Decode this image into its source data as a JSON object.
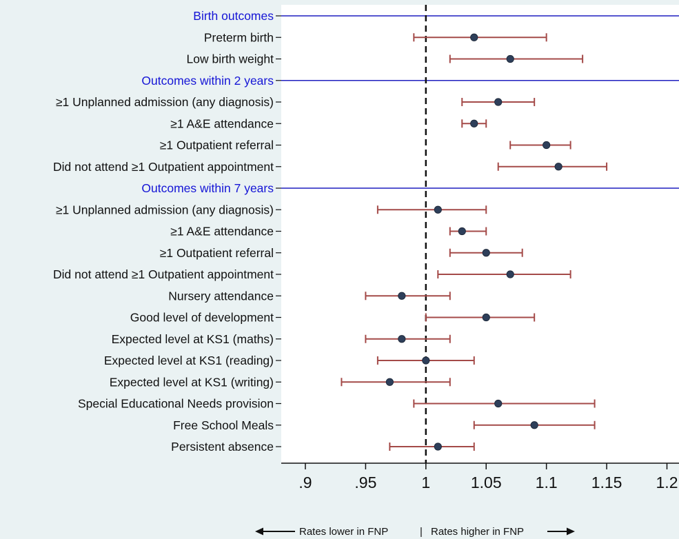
{
  "chart_data": {
    "type": "forest",
    "reference_line": 1,
    "xlim": [
      0.88,
      1.21
    ],
    "xticks": [
      {
        "value": 0.9,
        "label": ".9"
      },
      {
        "value": 0.95,
        "label": ".95"
      },
      {
        "value": 1.0,
        "label": "1"
      },
      {
        "value": 1.05,
        "label": "1.05"
      },
      {
        "value": 1.1,
        "label": "1.1"
      },
      {
        "value": 1.15,
        "label": "1.15"
      },
      {
        "value": 1.2,
        "label": "1.2"
      }
    ],
    "rows": [
      {
        "kind": "group",
        "label": "Birth outcomes"
      },
      {
        "kind": "item",
        "label": "Preterm birth",
        "estimate": 1.04,
        "lower": 0.99,
        "upper": 1.1
      },
      {
        "kind": "item",
        "label": "Low birth weight",
        "estimate": 1.07,
        "lower": 1.02,
        "upper": 1.13
      },
      {
        "kind": "group",
        "label": "Outcomes within 2 years"
      },
      {
        "kind": "item",
        "label": "≥1 Unplanned admission (any diagnosis)",
        "estimate": 1.06,
        "lower": 1.03,
        "upper": 1.09
      },
      {
        "kind": "item",
        "label": "≥1 A&E attendance",
        "estimate": 1.04,
        "lower": 1.03,
        "upper": 1.05
      },
      {
        "kind": "item",
        "label": "≥1 Outpatient referral",
        "estimate": 1.1,
        "lower": 1.07,
        "upper": 1.12
      },
      {
        "kind": "item",
        "label": "Did not attend ≥1 Outpatient appointment",
        "estimate": 1.11,
        "lower": 1.06,
        "upper": 1.15
      },
      {
        "kind": "group",
        "label": "Outcomes within 7 years"
      },
      {
        "kind": "item",
        "label": "≥1 Unplanned admission (any diagnosis)",
        "estimate": 1.01,
        "lower": 0.96,
        "upper": 1.05
      },
      {
        "kind": "item",
        "label": "≥1 A&E attendance",
        "estimate": 1.03,
        "lower": 1.02,
        "upper": 1.05
      },
      {
        "kind": "item",
        "label": "≥1 Outpatient referral",
        "estimate": 1.05,
        "lower": 1.02,
        "upper": 1.08
      },
      {
        "kind": "item",
        "label": "Did not attend ≥1 Outpatient appointment",
        "estimate": 1.07,
        "lower": 1.01,
        "upper": 1.12
      },
      {
        "kind": "item",
        "label": "Nursery attendance",
        "estimate": 0.98,
        "lower": 0.95,
        "upper": 1.02
      },
      {
        "kind": "item",
        "label": "Good level of development",
        "estimate": 1.05,
        "lower": 1.0,
        "upper": 1.09
      },
      {
        "kind": "item",
        "label": "Expected level at KS1 (maths)",
        "estimate": 0.98,
        "lower": 0.95,
        "upper": 1.02
      },
      {
        "kind": "item",
        "label": "Expected level at KS1 (reading)",
        "estimate": 1.0,
        "lower": 0.96,
        "upper": 1.04
      },
      {
        "kind": "item",
        "label": "Expected level at KS1 (writing)",
        "estimate": 0.97,
        "lower": 0.93,
        "upper": 1.02
      },
      {
        "kind": "item",
        "label": "Special Educational Needs provision",
        "estimate": 1.06,
        "lower": 0.99,
        "upper": 1.14
      },
      {
        "kind": "item",
        "label": "Free School Meals",
        "estimate": 1.09,
        "lower": 1.04,
        "upper": 1.14
      },
      {
        "kind": "item",
        "label": "Persistent absence",
        "estimate": 1.01,
        "lower": 0.97,
        "upper": 1.04
      }
    ],
    "footnote": {
      "left": "Rates lower in FNP",
      "separator": "|",
      "right": "Rates higher in FNP"
    },
    "colors": {
      "background": "#eaf2f3",
      "plot_area": "#ffffff",
      "group_text": "#1515d6",
      "group_line": "#1f1fbf",
      "ci_line": "#a44a48",
      "point_fill": "#2e3f5a",
      "text": "#111111"
    },
    "grid": false
  }
}
